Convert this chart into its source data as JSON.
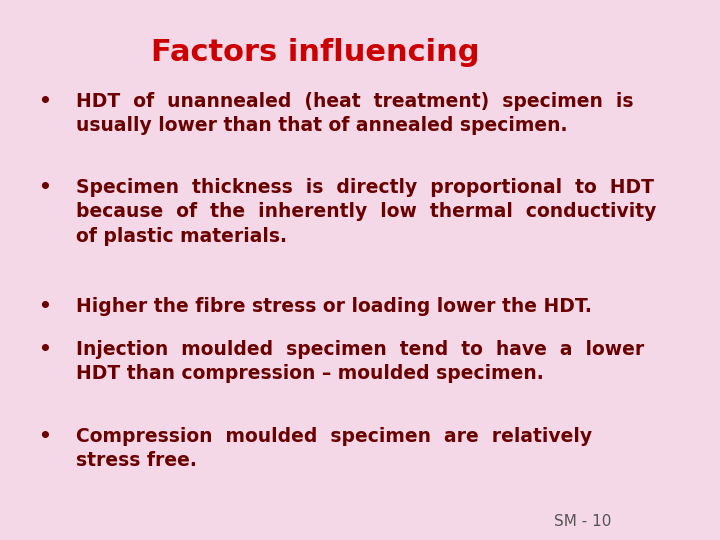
{
  "title": "Factors influencing",
  "title_color": "#cc0000",
  "title_fontsize": 22,
  "title_bold": true,
  "bg_color": "#f5d8e8",
  "text_color": "#6b0000",
  "bullet_color": "#6b0000",
  "body_fontsize": 13.5,
  "footer": "SM - 10",
  "footer_color": "#555555",
  "footer_fontsize": 11,
  "bullets": [
    "HDT  of  unannealed  (heat  treatment)  specimen  is\nusually lower than that of annealed specimen.",
    "Specimen  thickness  is  directly  proportional  to  HDT\nbecause  of  the  inherently  low  thermal  conductivity\nof plastic materials.",
    "Higher the fibre stress or loading lower the HDT.",
    "Injection  moulded  specimen  tend  to  have  a  lower\nHDT than compression – moulded specimen.",
    "Compression  moulded  specimen  are  relatively\nstress free."
  ]
}
